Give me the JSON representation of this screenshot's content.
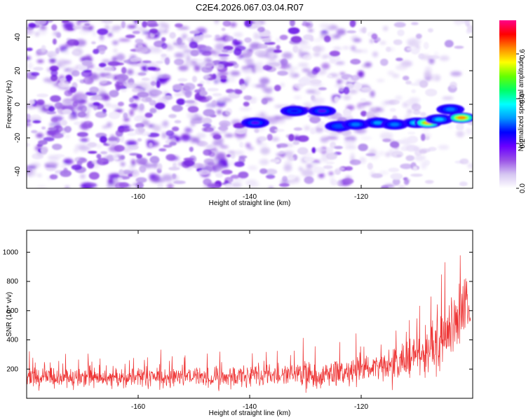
{
  "title": "C2E4.2026.067.03.04.R07",
  "colors": {
    "snr_line": "#ee3333",
    "spectrogram_low": "#a872e6",
    "track_core": "#ff2222"
  },
  "colorbar": {
    "label": "Normalized spectral amplitude",
    "range": [
      0.0,
      0.75
    ],
    "ticks": [
      "0.0",
      "0.2",
      "0.4",
      "0.6"
    ],
    "tick_values": [
      0.0,
      0.2,
      0.4,
      0.6
    ],
    "colormap": [
      "#ffffff",
      "#d6c6f2",
      "#9a52e6",
      "#6a00ff",
      "#0000ff",
      "#0099ff",
      "#00ffff",
      "#00ff66",
      "#66ff00",
      "#ffff00",
      "#ff8800",
      "#ff0000",
      "#ff0088"
    ]
  },
  "chart_data": [
    {
      "type": "heatmap",
      "name": "spectrogram",
      "title": "C2E4.2026.067.03.04.R07",
      "xlabel": "Height of straight line (km)",
      "ylabel": "Frequency (Hz)",
      "xlim": [
        -180,
        -100
      ],
      "ylim": [
        -50,
        50
      ],
      "x_ticks": [
        -160,
        -140,
        -120
      ],
      "y_ticks": [
        -40,
        -20,
        0,
        20,
        40
      ],
      "x_tick_labels": [
        "-160",
        "-140",
        "-120"
      ],
      "y_tick_labels": [
        "-40",
        "-20",
        "0",
        "20",
        "40"
      ],
      "signal_track": [
        {
          "x": -139,
          "y": -11,
          "amp": 0.2
        },
        {
          "x": -132,
          "y": -4,
          "amp": 0.24
        },
        {
          "x": -127,
          "y": -4,
          "amp": 0.2
        },
        {
          "x": -124,
          "y": -13,
          "amp": 0.28
        },
        {
          "x": -121,
          "y": -12,
          "amp": 0.3
        },
        {
          "x": -117,
          "y": -11,
          "amp": 0.32
        },
        {
          "x": -114,
          "y": -12,
          "amp": 0.3
        },
        {
          "x": -110,
          "y": -11,
          "amp": 0.38
        },
        {
          "x": -108,
          "y": -11,
          "amp": 0.6
        },
        {
          "x": -106,
          "y": -9,
          "amp": 0.34
        },
        {
          "x": -104,
          "y": -3,
          "amp": 0.3
        },
        {
          "x": -102,
          "y": -8,
          "amp": 0.62
        }
      ]
    },
    {
      "type": "line",
      "name": "snr",
      "xlabel": "Height of straight line (km)",
      "ylabel": "SNR (10 * v/v)",
      "xlim": [
        -180,
        -100
      ],
      "ylim": [
        0,
        1150
      ],
      "x_ticks": [
        -160,
        -140,
        -120
      ],
      "y_ticks": [
        200,
        400,
        600,
        800,
        1000
      ],
      "x_tick_labels": [
        "-160",
        "-140",
        "-120"
      ],
      "y_tick_labels": [
        "200",
        "400",
        "600",
        "800",
        "1000"
      ],
      "envelope_x": [
        -180,
        -170,
        -160,
        -150,
        -140,
        -130,
        -125,
        -120,
        -115,
        -110,
        -108,
        -106,
        -104,
        -102,
        -101,
        -100.5
      ],
      "envelope_mean": [
        140,
        140,
        145,
        145,
        150,
        160,
        175,
        190,
        220,
        280,
        330,
        380,
        420,
        620,
        700,
        500
      ],
      "envelope_spread": [
        90,
        95,
        95,
        100,
        100,
        110,
        120,
        130,
        160,
        220,
        300,
        320,
        330,
        360,
        380,
        150
      ]
    }
  ]
}
